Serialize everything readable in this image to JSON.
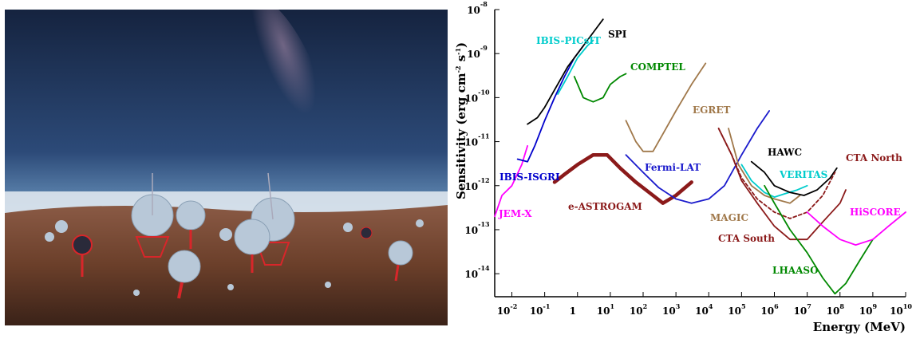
{
  "photo": {
    "kind": "telescope-array-illustration",
    "colors": {
      "sky_top": "#15233f",
      "sky_mid": "#3c6a9c",
      "horizon": "#c9d6e2",
      "ground": "#6b3f2a",
      "structure": "#d8262a"
    }
  },
  "chart_data": {
    "type": "line",
    "title": "",
    "xlabel": "Energy (MeV)",
    "ylabel": "Sensitivity (erg cm-2 s-1)",
    "xscale": "log",
    "yscale": "log",
    "xlim": [
      0.003,
      10000000000.0
    ],
    "ylim": [
      3e-15,
      1e-08
    ],
    "x_tick_exponents": [
      -2,
      -1,
      0,
      1,
      2,
      3,
      4,
      5,
      6,
      7,
      8,
      9,
      10
    ],
    "x_tick_labels": [
      "10",
      "10",
      "1",
      "10",
      "10",
      "10",
      "10",
      "10",
      "10",
      "10",
      "10",
      "10",
      "10"
    ],
    "y_tick_exponents": [
      -8,
      -9,
      -10,
      -11,
      -12,
      -13,
      -14
    ],
    "y_tick_labels": [
      "10",
      "10",
      "10",
      "10",
      "10",
      "10",
      "10"
    ],
    "grid": false,
    "legend": "labels placed next to curves",
    "series": [
      {
        "name": "JEM-X",
        "color": "#ff00ff",
        "width": 1.8,
        "dash": "",
        "points": [
          [
            0.003,
            2e-13
          ],
          [
            0.005,
            6e-13
          ],
          [
            0.01,
            1e-12
          ],
          [
            0.02,
            3e-12
          ],
          [
            0.03,
            8e-12
          ]
        ]
      },
      {
        "name": "IBIS-ISGRI",
        "color": "#0000cc",
        "width": 1.8,
        "dash": "",
        "points": [
          [
            0.015,
            4e-12
          ],
          [
            0.03,
            3.5e-12
          ],
          [
            0.05,
            8e-12
          ],
          [
            0.1,
            3e-11
          ],
          [
            0.2,
            1e-10
          ],
          [
            0.4,
            3e-10
          ],
          [
            0.8,
            8e-10
          ],
          [
            1.5,
            1.5e-09
          ]
        ]
      },
      {
        "name": "IBIS-PICsIT",
        "color": "#00cccc",
        "width": 1.8,
        "dash": "",
        "points": [
          [
            0.25,
            1.2e-10
          ],
          [
            0.5,
            3e-10
          ],
          [
            1,
            8e-10
          ],
          [
            2,
            1.5e-09
          ],
          [
            3,
            2e-09
          ]
        ]
      },
      {
        "name": "SPI",
        "color": "#000000",
        "width": 1.8,
        "dash": "",
        "points": [
          [
            0.03,
            2.5e-11
          ],
          [
            0.06,
            3.5e-11
          ],
          [
            0.1,
            6e-11
          ],
          [
            0.2,
            1.5e-10
          ],
          [
            0.5,
            5e-10
          ],
          [
            1,
            1e-09
          ],
          [
            2,
            2e-09
          ],
          [
            4,
            4e-09
          ],
          [
            6,
            6e-09
          ]
        ]
      },
      {
        "name": "COMPTEL",
        "color": "#008800",
        "width": 1.8,
        "dash": "",
        "points": [
          [
            0.8,
            3e-10
          ],
          [
            1.5,
            1e-10
          ],
          [
            3,
            8e-11
          ],
          [
            6,
            1e-10
          ],
          [
            10,
            2e-10
          ],
          [
            20,
            3e-10
          ],
          [
            30,
            3.5e-10
          ]
        ]
      },
      {
        "name": "EGRET",
        "color": "#a0784a",
        "width": 1.8,
        "dash": "",
        "points": [
          [
            30,
            3e-11
          ],
          [
            60,
            1e-11
          ],
          [
            100,
            6e-12
          ],
          [
            200,
            6e-12
          ],
          [
            400,
            1.5e-11
          ],
          [
            1000,
            5e-11
          ],
          [
            3000,
            2e-10
          ],
          [
            8000,
            6e-10
          ]
        ]
      },
      {
        "name": "e-ASTROGAM",
        "color": "#8b1a1a",
        "width": 4.5,
        "dash": "",
        "points": [
          [
            0.2,
            1.2e-12
          ],
          [
            0.4,
            1.8e-12
          ],
          [
            1,
            3e-12
          ],
          [
            3,
            5e-12
          ],
          [
            8,
            5e-12
          ],
          [
            20,
            2.5e-12
          ],
          [
            60,
            1.2e-12
          ],
          [
            200,
            6e-13
          ],
          [
            400,
            4e-13
          ],
          [
            1000,
            6e-13
          ],
          [
            3000,
            1.2e-12
          ]
        ]
      },
      {
        "name": "Fermi-LAT",
        "color": "#1a1acc",
        "width": 1.8,
        "dash": "",
        "points": [
          [
            30,
            5e-12
          ],
          [
            100,
            2e-12
          ],
          [
            300,
            9e-13
          ],
          [
            1000,
            5e-13
          ],
          [
            3000,
            4e-13
          ],
          [
            10000,
            5e-13
          ],
          [
            30000,
            1e-12
          ],
          [
            100000,
            5e-12
          ],
          [
            300000,
            2e-11
          ],
          [
            700000,
            5e-11
          ]
        ]
      },
      {
        "name": "MAGIC",
        "color": "#a0784a",
        "width": 1.8,
        "dash": "",
        "points": [
          [
            40000,
            2e-11
          ],
          [
            80000,
            3e-12
          ],
          [
            200000,
            1e-12
          ],
          [
            500000,
            6e-13
          ],
          [
            1000000,
            5e-13
          ],
          [
            3000000,
            4e-13
          ],
          [
            6000000,
            6e-13
          ]
        ]
      },
      {
        "name": "VERITAS",
        "color": "#00cccc",
        "width": 1.8,
        "dash": "",
        "points": [
          [
            100000,
            3e-12
          ],
          [
            200000,
            1.3e-12
          ],
          [
            500000,
            7e-13
          ],
          [
            1000000,
            5.5e-13
          ],
          [
            2000000,
            6.5e-13
          ],
          [
            5000000,
            8e-13
          ],
          [
            10000000,
            1e-12
          ]
        ]
      },
      {
        "name": "HAWC",
        "color": "#000000",
        "width": 1.8,
        "dash": "",
        "points": [
          [
            200000,
            3.5e-12
          ],
          [
            500000,
            2e-12
          ],
          [
            1000000,
            1e-12
          ],
          [
            3000000,
            7e-13
          ],
          [
            8000000,
            6e-13
          ],
          [
            20000000,
            8e-13
          ],
          [
            50000000,
            1.5e-12
          ],
          [
            80000000,
            2.5e-12
          ]
        ]
      },
      {
        "name": "CTA North",
        "color": "#8b1a1a",
        "width": 1.8,
        "dash": "4,3",
        "points": [
          [
            20000,
            2e-11
          ],
          [
            50000,
            5e-12
          ],
          [
            100000,
            1.5e-12
          ],
          [
            300000,
            5e-13
          ],
          [
            1000000,
            2.5e-13
          ],
          [
            3000000,
            1.8e-13
          ],
          [
            10000000,
            2.5e-13
          ],
          [
            30000000,
            6e-13
          ],
          [
            70000000,
            2e-12
          ]
        ]
      },
      {
        "name": "CTA South",
        "color": "#8b1a1a",
        "width": 1.8,
        "dash": "",
        "points": [
          [
            20000,
            2e-11
          ],
          [
            50000,
            5e-12
          ],
          [
            100000,
            1.3e-12
          ],
          [
            300000,
            4e-13
          ],
          [
            1000000,
            1.2e-13
          ],
          [
            3000000,
            6e-14
          ],
          [
            10000000,
            6e-14
          ],
          [
            30000000,
            1.5e-13
          ],
          [
            100000000,
            4e-13
          ],
          [
            150000000,
            8e-13
          ]
        ]
      },
      {
        "name": "LHAASO",
        "color": "#008800",
        "width": 1.8,
        "dash": "",
        "points": [
          [
            500000,
            1e-12
          ],
          [
            1000000,
            4e-13
          ],
          [
            3000000,
            1e-13
          ],
          [
            10000000,
            3e-14
          ],
          [
            30000000,
            8e-15
          ],
          [
            70000000,
            3.5e-15
          ],
          [
            150000000,
            6e-15
          ],
          [
            400000000,
            2e-14
          ],
          [
            1000000000,
            6e-14
          ]
        ]
      },
      {
        "name": "HiSCORE",
        "color": "#ff00ff",
        "width": 1.8,
        "dash": "",
        "points": [
          [
            10000000,
            2.5e-13
          ],
          [
            30000000,
            1.2e-13
          ],
          [
            100000000,
            6e-14
          ],
          [
            300000000,
            4.5e-14
          ],
          [
            1000000000,
            6e-14
          ],
          [
            3000000000,
            1.2e-13
          ],
          [
            10000000000,
            2.5e-13
          ]
        ]
      }
    ]
  }
}
